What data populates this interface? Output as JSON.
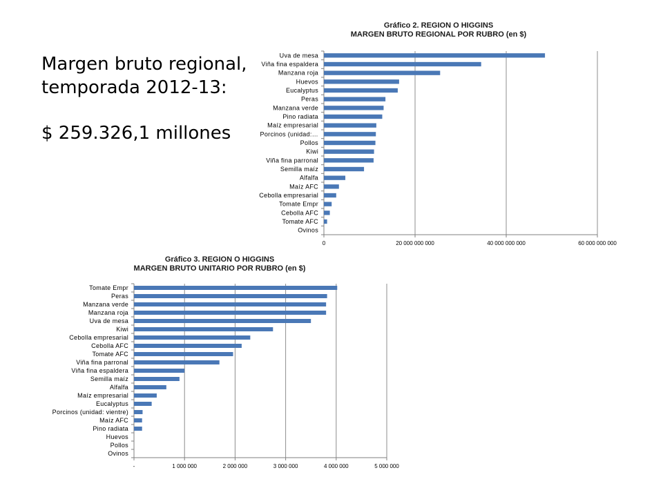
{
  "slide": {
    "line1": "Margen bruto regional,",
    "line2": "temporada 2012-13:",
    "line3": "$ 259.326,1 millones"
  },
  "colors": {
    "bar": "#4a78b6",
    "grid": "#8c8c8c"
  },
  "chart_data": [
    {
      "type": "bar",
      "orientation": "horizontal",
      "title": "Gráfico  2. REGION O HIGGINS",
      "subtitle": "MARGEN BRUTO REGIONAL POR RUBRO (en $)",
      "categories": [
        "Uva de mesa",
        "Viña fina espaldera",
        "Manzana roja",
        "Huevos",
        "Eucalyptus",
        "Peras",
        "Manzana verde",
        "Pino radiata",
        "Maíz empresarial",
        "Porcinos (unidad:…",
        "Pollos",
        "Kiwi",
        "Viña fina parronal",
        "Semilla maíz",
        "Alfalfa",
        "Maíz AFC",
        "Cebolla empresarial",
        "Tomate Empr",
        "Cebolla AFC",
        "Tomate AFC",
        "Ovinos"
      ],
      "values": [
        48500000000,
        34500000000,
        25500000000,
        16500000000,
        16200000000,
        13500000000,
        13100000000,
        12800000000,
        11500000000,
        11400000000,
        11300000000,
        11000000000,
        10900000000,
        8800000000,
        4700000000,
        3300000000,
        2700000000,
        1700000000,
        1300000000,
        700000000,
        0
      ],
      "xticks": [
        "0",
        "20 000 000 000",
        "40 000 000 000",
        "60 000 000 000"
      ],
      "xlim": [
        0,
        60000000000
      ],
      "grid": true
    },
    {
      "type": "bar",
      "orientation": "horizontal",
      "title": "Gráfico 3. REGION O HIGGINS",
      "subtitle": "MARGEN BRUTO UNITARIO POR RUBRO (en $)",
      "categories": [
        "Tomate Empr",
        "Peras",
        "Manzana verde",
        "Manzana roja",
        "Uva de mesa",
        "Kiwi",
        "Cebolla empresarial",
        "Cebolla AFC",
        "Tomate AFC",
        "Viña fina parronal",
        "Viña fina espaldera",
        "Semilla maíz",
        "Alfalfa",
        "Maíz empresarial",
        "Eucalyptus",
        "Porcinos (unidad: vientre)",
        "Maíz AFC",
        "Pino radiata",
        "Huevos",
        "Pollos",
        "Ovinos"
      ],
      "values": [
        4020000,
        3820000,
        3800000,
        3800000,
        3500000,
        2750000,
        2300000,
        2130000,
        1960000,
        1690000,
        1000000,
        900000,
        640000,
        450000,
        350000,
        170000,
        160000,
        160000,
        0,
        0,
        0
      ],
      "xticks": [
        "-",
        "1 000 000",
        "2 000 000",
        "3 000 000",
        "4 000 000",
        "5 000 000"
      ],
      "xlim": [
        0,
        5000000
      ],
      "grid": true
    }
  ]
}
